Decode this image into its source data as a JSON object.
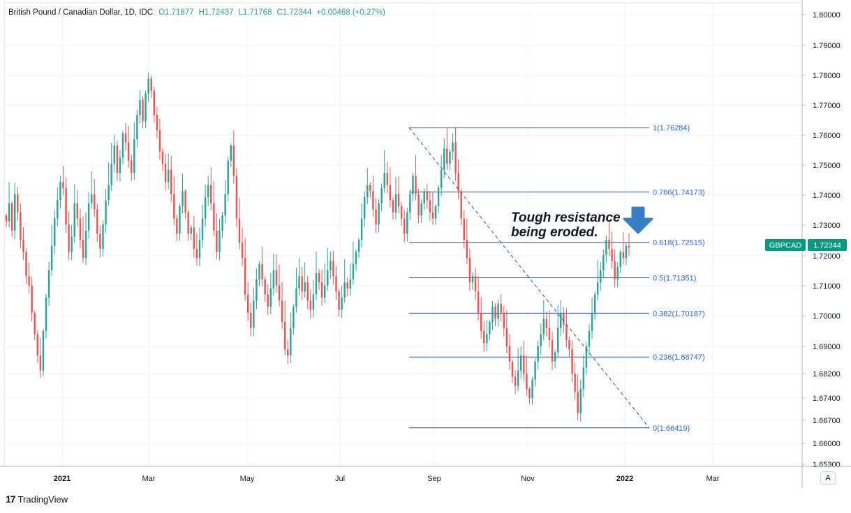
{
  "header": {
    "symbol_title": "British Pound / Canadian Dollar, 1D, IDC",
    "ohlc": [
      "O1.71877",
      "H1.72437",
      "L1.71768",
      "C1.72344",
      "+0.00468 (+0.27%)"
    ]
  },
  "price_label": {
    "symbol": "GBPCAD",
    "value": "1.72344",
    "color": "#089981"
  },
  "annotation": {
    "line1": "Tough resistance",
    "line2": "being eroded.",
    "arrow_color": "#3a7fc6"
  },
  "footer": {
    "brand_mark": "17",
    "brand_text": "TradingView",
    "auto_label": "A"
  },
  "colors": {
    "up": "#26a69a",
    "down": "#ef5350",
    "fib": "#2a52be",
    "fib_text": "#2962ff",
    "grid": "#eef0f4"
  },
  "chart_data": {
    "type": "candlestick",
    "symbol": "GBPCAD",
    "interval": "1D",
    "y_ticks": [
      "1.80000",
      "1.79000",
      "1.78000",
      "1.77000",
      "1.76000",
      "1.75000",
      "1.74000",
      "1.73000",
      "1.72000",
      "1.71000",
      "1.70000",
      "1.69000",
      "1.68200",
      "1.67400",
      "1.66700",
      "1.66000",
      "1.65300"
    ],
    "ylim": [
      1.653,
      1.805
    ],
    "x_ticks": [
      "2021",
      "Mar",
      "May",
      "Jul",
      "Sep",
      "Nov",
      "2022",
      "Mar"
    ],
    "last_close": 1.72344,
    "fibonacci": [
      {
        "label": "1(1.76284)",
        "value": 1.76284
      },
      {
        "label": "0.786(1.74173)",
        "value": 1.74173
      },
      {
        "label": "0.618(1.72515)",
        "value": 1.72515
      },
      {
        "label": "0.5(1.71351)",
        "value": 1.71351
      },
      {
        "label": "0.382(1.70187)",
        "value": 1.70187
      },
      {
        "label": "0.236(1.68747)",
        "value": 1.68747
      },
      {
        "label": "0(1.66419)",
        "value": 1.66419
      }
    ],
    "trendline": {
      "from": 1.76284,
      "to": 1.66419
    },
    "closes": [
      1.732,
      1.738,
      1.729,
      1.741,
      1.735,
      1.726,
      1.722,
      1.714,
      1.711,
      1.702,
      1.695,
      1.688,
      1.683,
      1.696,
      1.707,
      1.716,
      1.724,
      1.733,
      1.739,
      1.745,
      1.743,
      1.731,
      1.722,
      1.727,
      1.738,
      1.733,
      1.726,
      1.72,
      1.729,
      1.738,
      1.741,
      1.736,
      1.728,
      1.723,
      1.731,
      1.739,
      1.744,
      1.751,
      1.757,
      1.748,
      1.753,
      1.761,
      1.758,
      1.752,
      1.748,
      1.759,
      1.767,
      1.772,
      1.765,
      1.774,
      1.779,
      1.775,
      1.767,
      1.762,
      1.755,
      1.751,
      1.745,
      1.749,
      1.741,
      1.733,
      1.728,
      1.737,
      1.742,
      1.735,
      1.728,
      1.73,
      1.723,
      1.72,
      1.726,
      1.733,
      1.74,
      1.744,
      1.738,
      1.729,
      1.722,
      1.729,
      1.734,
      1.741,
      1.752,
      1.757,
      1.747,
      1.733,
      1.725,
      1.72,
      1.708,
      1.702,
      1.697,
      1.706,
      1.713,
      1.718,
      1.713,
      1.708,
      1.704,
      1.71,
      1.716,
      1.711,
      1.706,
      1.699,
      1.69,
      1.688,
      1.697,
      1.704,
      1.71,
      1.714,
      1.709,
      1.712,
      1.706,
      1.703,
      1.708,
      1.715,
      1.712,
      1.707,
      1.711,
      1.716,
      1.719,
      1.714,
      1.709,
      1.703,
      1.707,
      1.712,
      1.71,
      1.713,
      1.718,
      1.722,
      1.726,
      1.733,
      1.74,
      1.744,
      1.742,
      1.736,
      1.731,
      1.738,
      1.743,
      1.748,
      1.744,
      1.739,
      1.735,
      1.741,
      1.737,
      1.733,
      1.728,
      1.735,
      1.741,
      1.747,
      1.741,
      1.734,
      1.738,
      1.742,
      1.739,
      1.735,
      1.733,
      1.737,
      1.743,
      1.749,
      1.756,
      1.751,
      1.755,
      1.758,
      1.748,
      1.742,
      1.733,
      1.726,
      1.72,
      1.712,
      1.714,
      1.709,
      1.702,
      1.696,
      1.692,
      1.695,
      1.699,
      1.704,
      1.7,
      1.705,
      1.702,
      1.697,
      1.691,
      1.686,
      1.681,
      1.678,
      1.683,
      1.688,
      1.682,
      1.677,
      1.674,
      1.68,
      1.686,
      1.691,
      1.695,
      1.7,
      1.697,
      1.693,
      1.686,
      1.689,
      1.697,
      1.702,
      1.698,
      1.693,
      1.69,
      1.682,
      1.676,
      1.669,
      1.677,
      1.684,
      1.691,
      1.696,
      1.702,
      1.708,
      1.712,
      1.716,
      1.721,
      1.726,
      1.723,
      1.719,
      1.713,
      1.717,
      1.722,
      1.72,
      1.724,
      1.72344
    ]
  }
}
